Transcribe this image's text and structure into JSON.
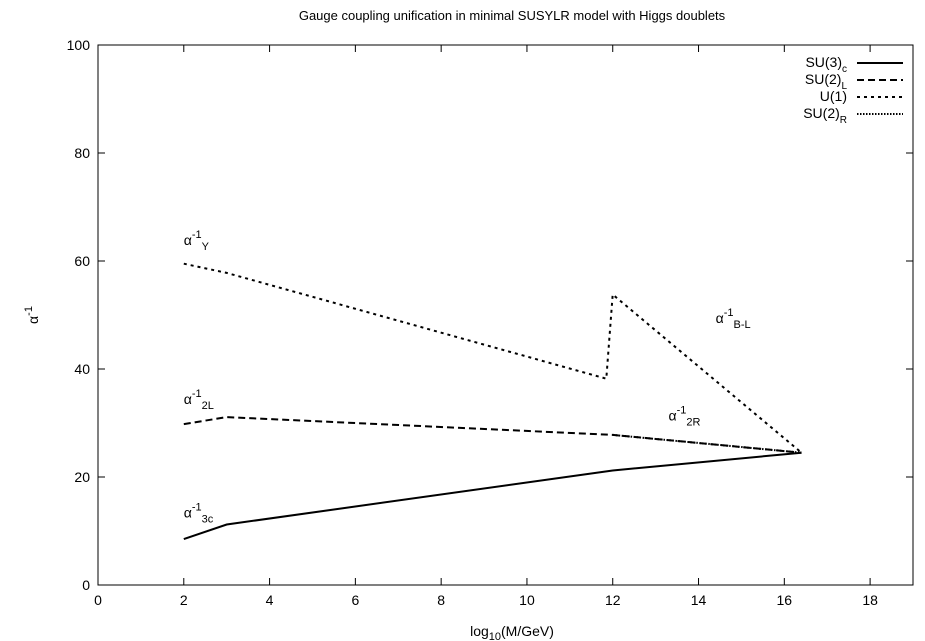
{
  "chart_data": {
    "type": "line",
    "title": "Gauge coupling unification in minimal SUSYLR model with Higgs doublets",
    "xlabel": {
      "base": "log",
      "sub": "10",
      "rest": "(M/GeV)"
    },
    "ylabel": {
      "base": "α",
      "sup": "-1"
    },
    "xlim": [
      0,
      19
    ],
    "ylim": [
      0,
      100
    ],
    "xticks": [
      0,
      2,
      4,
      6,
      8,
      10,
      12,
      14,
      16,
      18
    ],
    "yticks": [
      0,
      20,
      40,
      60,
      80,
      100
    ],
    "grid": false,
    "legend_position": "top-right",
    "legend": [
      {
        "base": "SU(3)",
        "sub": "c",
        "dash": ""
      },
      {
        "base": "SU(2)",
        "sub": "L",
        "dash": "7,4"
      },
      {
        "base": "U(1)",
        "sub": "",
        "dash": "3,4"
      },
      {
        "base": "SU(2)",
        "sub": "R",
        "dash": "1.5,1.5"
      }
    ],
    "series": [
      {
        "name": "SU(3)c",
        "dash": "",
        "points": [
          [
            2,
            8.5
          ],
          [
            3,
            11.2
          ],
          [
            12,
            21.2
          ],
          [
            16.4,
            24.5
          ]
        ]
      },
      {
        "name": "SU(2)L",
        "dash": "7,4",
        "points": [
          [
            2,
            29.8
          ],
          [
            3,
            31.1
          ],
          [
            12,
            27.8
          ],
          [
            16.4,
            24.5
          ]
        ]
      },
      {
        "name": "U(1)",
        "dash": "3,4",
        "points": [
          [
            2,
            59.5
          ],
          [
            3,
            57.8
          ],
          [
            11.85,
            38.2
          ],
          [
            12,
            53.8
          ],
          [
            16.4,
            24.5
          ]
        ]
      },
      {
        "name": "SU(2)R",
        "dash": "1.5,1.5",
        "points": [
          [
            12,
            27.8
          ],
          [
            16.4,
            24.5
          ]
        ]
      }
    ],
    "annotations": [
      {
        "base": "α",
        "sup": "-1",
        "sub": "Y",
        "x": 2.0,
        "y": 63
      },
      {
        "base": "α",
        "sup": "-1",
        "sub": "2L",
        "x": 2.0,
        "y": 33.5
      },
      {
        "base": "α",
        "sup": "-1",
        "sub": "3c",
        "x": 2.0,
        "y": 12.5
      },
      {
        "base": "α",
        "sup": "-1",
        "sub": "B-L",
        "x": 14.4,
        "y": 48.5
      },
      {
        "base": "α",
        "sup": "-1",
        "sub": "2R",
        "x": 13.3,
        "y": 30.5
      }
    ]
  }
}
